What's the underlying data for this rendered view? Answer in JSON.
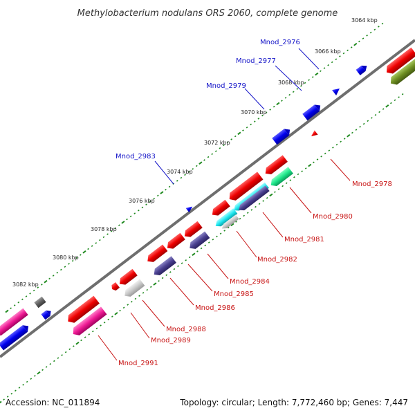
{
  "title": "Methylobacterium nodulans ORS 2060, complete genome",
  "footer": {
    "accession": "Accession: NC_011894",
    "summary": "Topology: circular; Length: 7,772,460 bp; Genes: 7,447"
  },
  "colors": {
    "backbone": "#6e6e6e",
    "ticks": "#1f8a1f",
    "forward_label": "#1414c8",
    "reverse_label": "#c81414"
  },
  "ticks": [
    {
      "label": "3064 kbp"
    },
    {
      "label": "3066 kbp"
    },
    {
      "label": "3068 kbp"
    },
    {
      "label": "3070 kbp"
    },
    {
      "label": "3072 kbp"
    },
    {
      "label": "3074 kbp"
    },
    {
      "label": "3076 kbp"
    },
    {
      "label": "3078 kbp"
    },
    {
      "label": "3080 kbp"
    },
    {
      "label": "3082 kbp"
    }
  ],
  "forward_labels": [
    {
      "text": "Mnod_2976"
    },
    {
      "text": "Mnod_2977"
    },
    {
      "text": "Mnod_2979"
    },
    {
      "text": "Mnod_2983"
    }
  ],
  "reverse_labels": [
    {
      "text": "Mnod_2978"
    },
    {
      "text": "Mnod_2980"
    },
    {
      "text": "Mnod_2981"
    },
    {
      "text": "Mnod_2982"
    },
    {
      "text": "Mnod_2984"
    },
    {
      "text": "Mnod_2985"
    },
    {
      "text": "Mnod_2986"
    },
    {
      "text": "Mnod_2988"
    },
    {
      "text": "Mnod_2989"
    },
    {
      "text": "Mnod_2991"
    }
  ]
}
